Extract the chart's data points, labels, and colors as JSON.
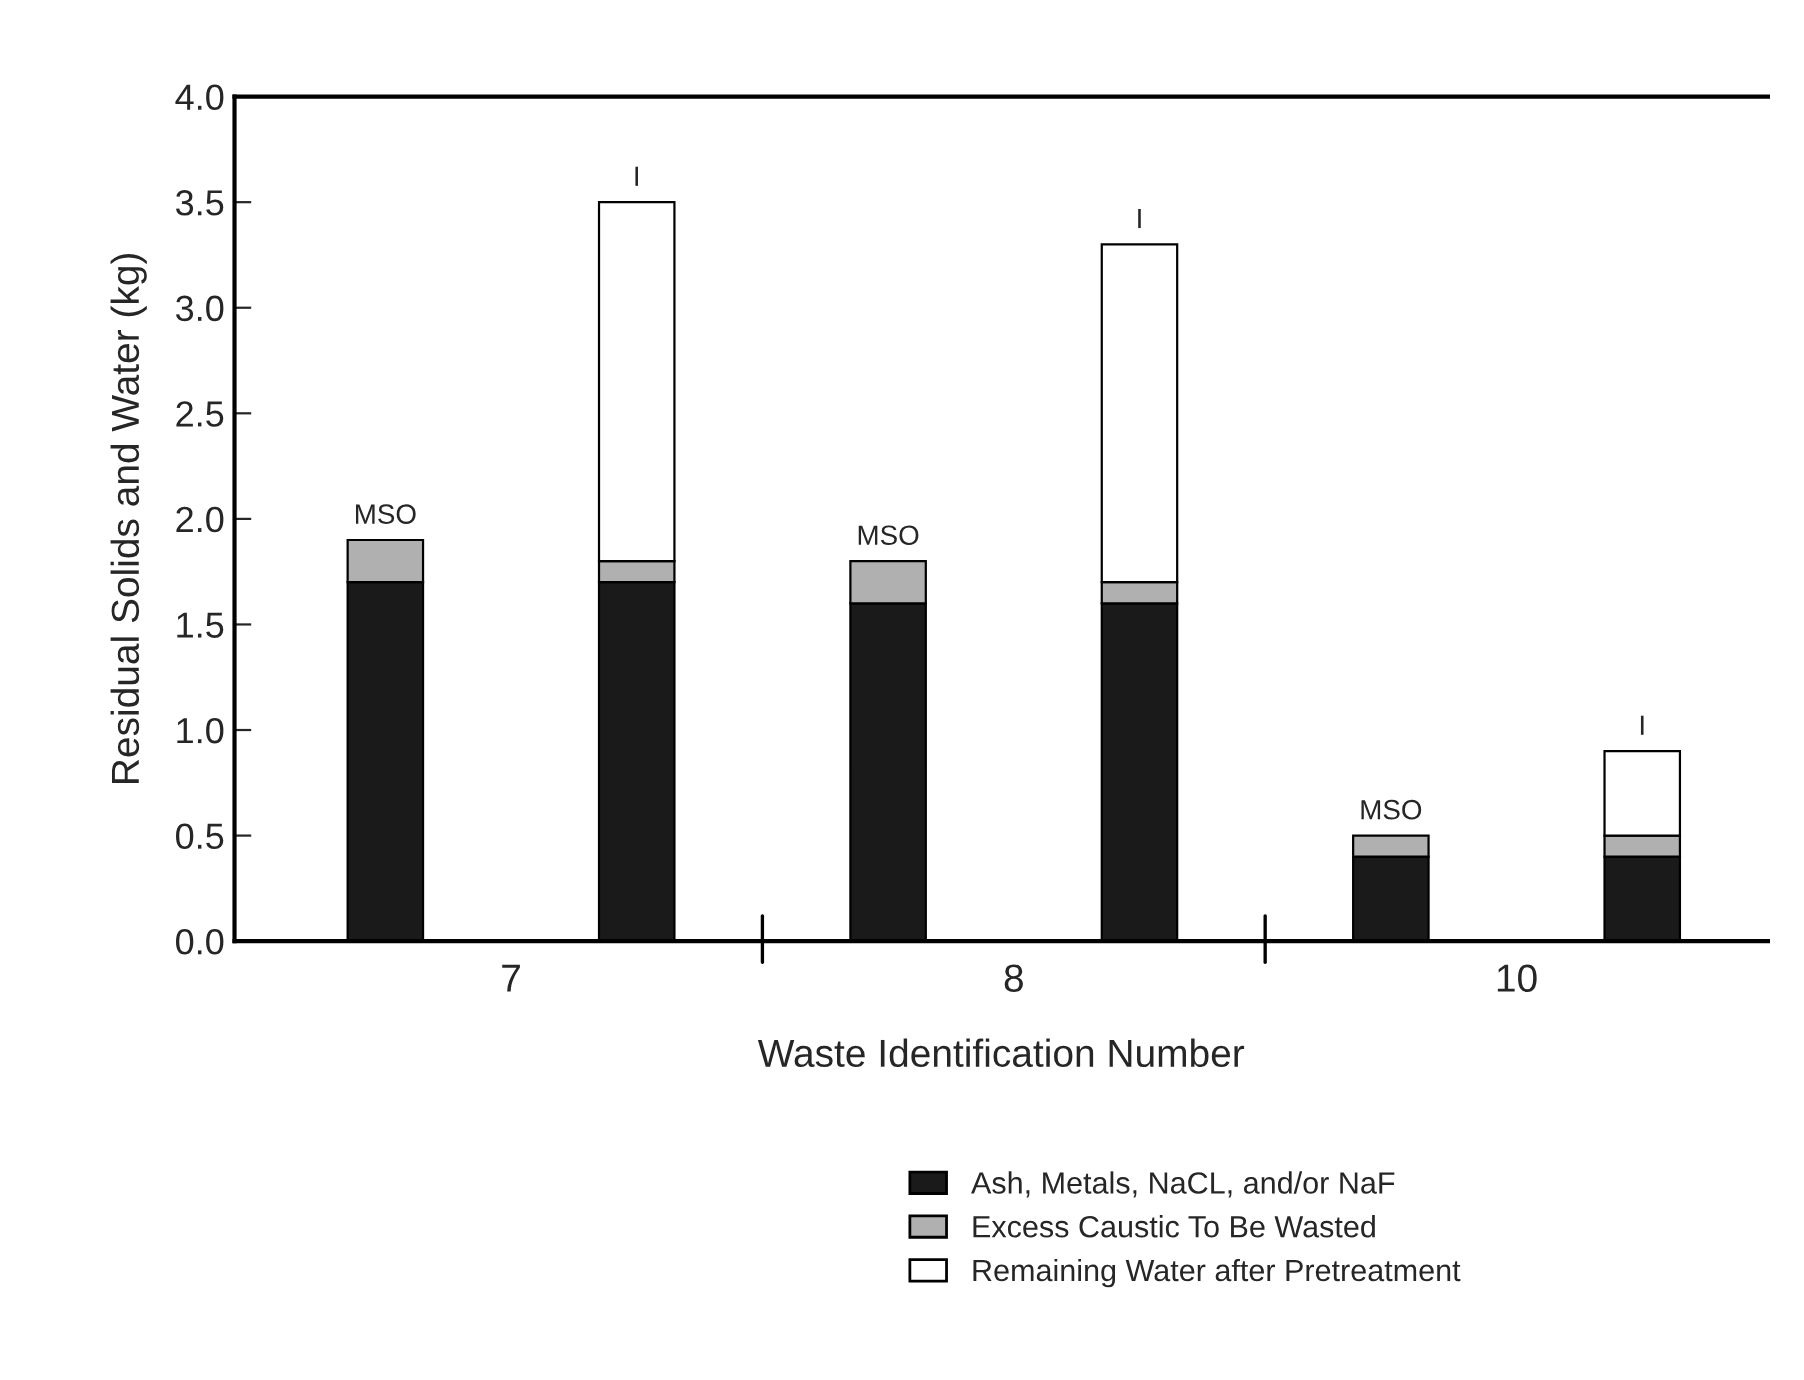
{
  "chart_data": {
    "type": "bar",
    "stacked": true,
    "xlabel": "Waste Identification Number",
    "ylabel": "Residual Solids and Water (kg)",
    "categories": [
      "7",
      null,
      "8",
      null,
      "10",
      null
    ],
    "series": [
      {
        "name": "Ash, Metals, NaCL, and/or NaF",
        "color": "#1a1a1a",
        "values": [
          1.7,
          1.7,
          1.6,
          1.6,
          0.4,
          0.4
        ]
      },
      {
        "name": "Excess Caustic To Be Wasted",
        "color": "#b0b0b0",
        "values": [
          0.2,
          0.1,
          0.2,
          0.1,
          0.1,
          0.1
        ]
      },
      {
        "name": "Remaining Water after Pretreatment",
        "color": "#ffffff",
        "values": [
          null,
          1.7,
          null,
          1.6,
          null,
          0.4
        ]
      }
    ],
    "totals": [
      "MSO",
      "I",
      "MSO",
      "I",
      "MSO",
      "I"
    ],
    "ylim": [
      0,
      4
    ],
    "yticks": [
      {
        "value": 0,
        "label": "0.0"
      },
      {
        "value": 0.5,
        "label": "0.5"
      },
      {
        "value": 1,
        "label": "1.0"
      },
      {
        "value": 1.5,
        "label": "1.5"
      },
      {
        "value": 2,
        "label": "2.0"
      },
      {
        "value": 2.5,
        "label": "2.5"
      },
      {
        "value": 3,
        "label": "3.0"
      },
      {
        "value": 3.5,
        "label": "3.5"
      },
      {
        "value": 4,
        "label": "4.0"
      }
    ],
    "grid": false,
    "legend": "bottom"
  }
}
